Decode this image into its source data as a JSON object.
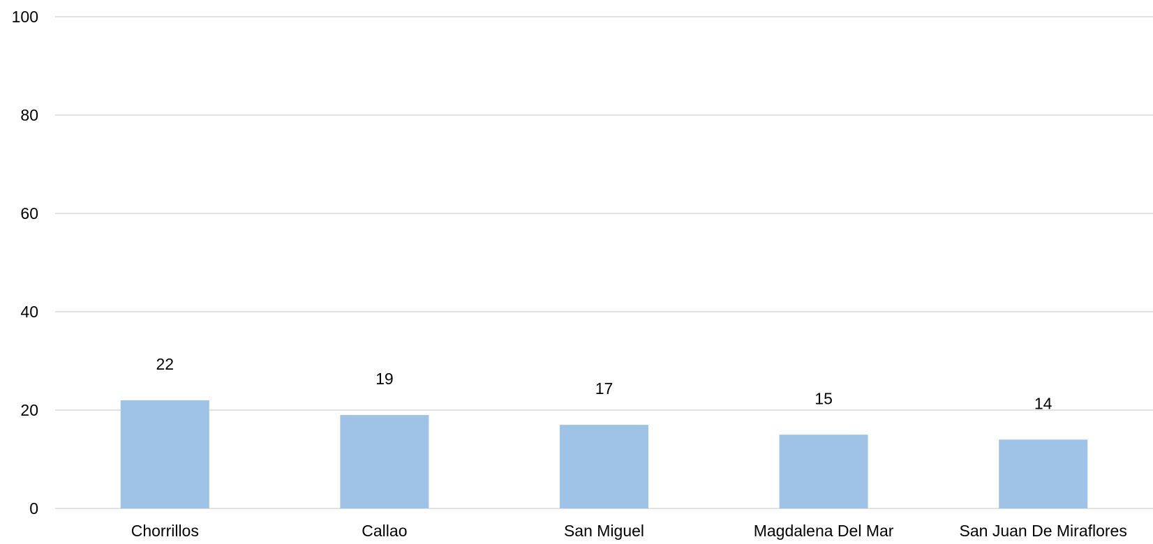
{
  "chart_data": {
    "type": "bar",
    "title": "",
    "xlabel": "",
    "ylabel": "",
    "categories": [
      "Chorrillos",
      "Callao",
      "San Miguel",
      "Magdalena Del Mar",
      "San Juan De Miraflores"
    ],
    "values": [
      22,
      19,
      17,
      15,
      14
    ],
    "ylim": [
      0,
      100
    ],
    "yticks": [
      0,
      20,
      40,
      60,
      80,
      100
    ],
    "grid": true,
    "legend": "none",
    "colors": {
      "bar": "#9fc3e7",
      "grid": "#d9d9d9",
      "text": "#000000"
    }
  }
}
